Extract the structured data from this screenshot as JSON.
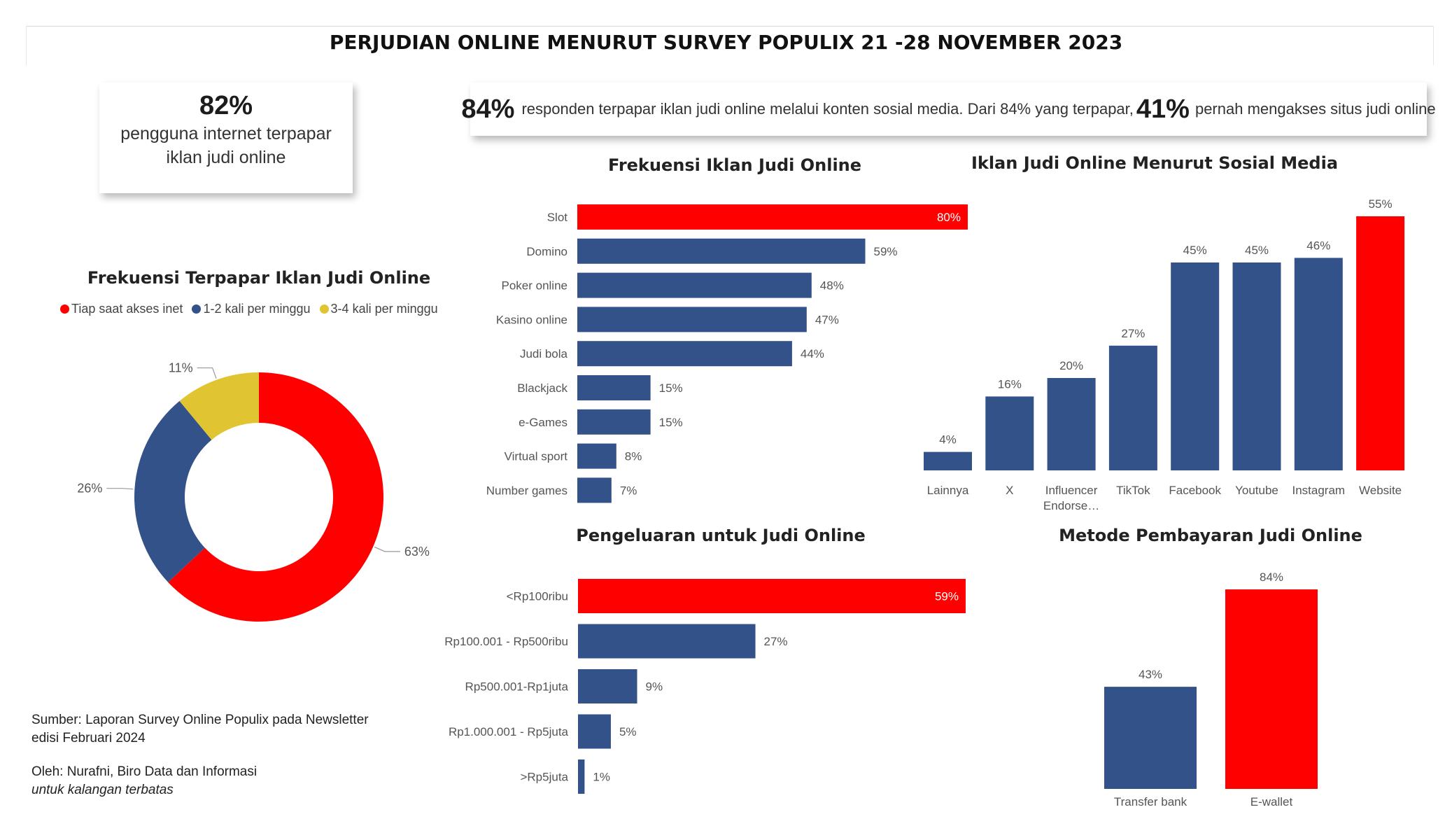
{
  "title": "PERJUDIAN ONLINE MENURUT SURVEY POPULIX 21 -28 NOVEMBER 2023",
  "card1": {
    "pct": "82%",
    "line1": "pengguna internet terpapar",
    "line2": "iklan judi online"
  },
  "card2": {
    "pct1": "84%",
    "text1": "responden terpapar iklan judi online melalui konten sosial media. Dari 84% yang terpapar,",
    "pct2": "41%",
    "text2": "pernah mengakses situs judi online"
  },
  "footer": {
    "source_line1": "Sumber: Laporan Survey Online Populix pada Newsletter",
    "source_line2": "edisi Februari 2024",
    "author": "Oleh: Nurafni, Biro Data dan Informasi",
    "note": "untuk kalangan terbatas"
  },
  "colors": {
    "red": "#ff0000",
    "blue": "#34528a",
    "yellow": "#e0c431"
  },
  "chart_data": [
    {
      "id": "donut",
      "type": "pie",
      "title": "Frekuensi Terpapar Iklan Judi Online",
      "legend_position": "top",
      "slices": [
        {
          "name": "Tiap saat akses inet",
          "value": 63,
          "label": "63%",
          "color": "#ff0000"
        },
        {
          "name": "1-2 kali per minggu",
          "value": 26,
          "label": "26%",
          "color": "#34528a"
        },
        {
          "name": "3-4 kali per minggu",
          "value": 11,
          "label": "11%",
          "color": "#e0c431"
        }
      ]
    },
    {
      "id": "frekuensi",
      "type": "bar",
      "orientation": "horizontal",
      "title": "Frekuensi Iklan Judi Online",
      "categories": [
        "Slot",
        "Domino",
        "Poker online",
        "Kasino online",
        "Judi bola",
        "Blackjack",
        "e-Games",
        "Virtual sport",
        "Number games"
      ],
      "values": [
        80,
        59,
        48,
        47,
        44,
        15,
        15,
        8,
        7
      ],
      "labels": [
        "80%",
        "59%",
        "48%",
        "47%",
        "44%",
        "15%",
        "15%",
        "8%",
        "7%"
      ],
      "highlight": [
        0
      ],
      "xlim": [
        0,
        80
      ]
    },
    {
      "id": "sosmed",
      "type": "bar",
      "orientation": "vertical",
      "title": "Iklan Judi Online Menurut Sosial Media",
      "categories": [
        "Lainnya",
        "X",
        "Influencer Endorse…",
        "TikTok",
        "Facebook",
        "Youtube",
        "Instagram",
        "Website"
      ],
      "values": [
        4,
        16,
        20,
        27,
        45,
        45,
        46,
        55
      ],
      "labels": [
        "4%",
        "16%",
        "20%",
        "27%",
        "45%",
        "45%",
        "46%",
        "55%"
      ],
      "highlight": [
        7
      ],
      "ylim": [
        0,
        55
      ]
    },
    {
      "id": "pengeluaran",
      "type": "bar",
      "orientation": "horizontal",
      "title": "Pengeluaran untuk Judi Online",
      "categories": [
        "<Rp100ribu",
        "Rp100.001 - Rp500ribu",
        "Rp500.001-Rp1juta",
        "Rp1.000.001 - Rp5juta",
        ">Rp5juta"
      ],
      "values": [
        59,
        27,
        9,
        5,
        1
      ],
      "labels": [
        "59%",
        "27%",
        "9%",
        "5%",
        "1%"
      ],
      "highlight": [
        0
      ],
      "xlim": [
        0,
        59
      ]
    },
    {
      "id": "pembayaran",
      "type": "bar",
      "orientation": "vertical",
      "title": "Metode Pembayaran Judi Online",
      "categories": [
        "Transfer bank",
        "E-wallet"
      ],
      "values": [
        43,
        84
      ],
      "labels": [
        "43%",
        "84%"
      ],
      "highlight": [
        1
      ],
      "ylim": [
        0,
        84
      ]
    }
  ]
}
